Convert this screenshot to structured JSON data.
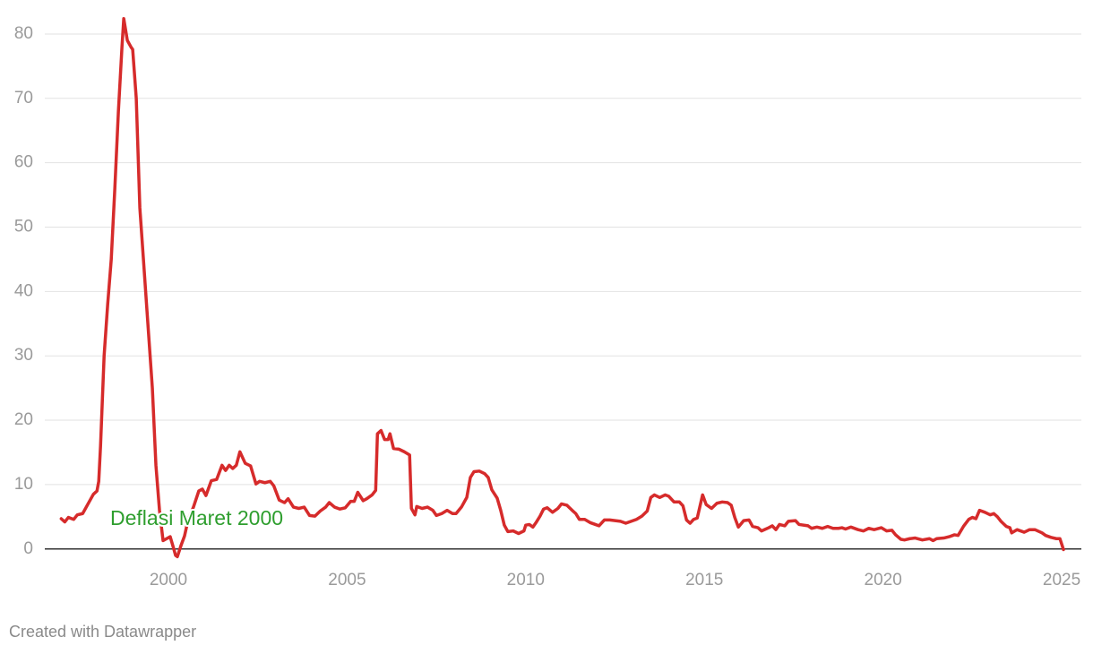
{
  "chart_data": {
    "type": "line",
    "annotation": "Deflasi Maret 2000",
    "credit": "Created with Datawrapper",
    "x": [
      1997.0,
      1997.1,
      1997.2,
      1997.35,
      1997.45,
      1997.6,
      1997.75,
      1997.9,
      1998.0,
      1998.05,
      1998.1,
      1998.2,
      1998.3,
      1998.4,
      1998.5,
      1998.6,
      1998.7,
      1998.75,
      1998.85,
      1998.95,
      1999.0,
      1999.1,
      1999.2,
      1999.3,
      1999.4,
      1999.55,
      1999.65,
      1999.75,
      1999.85,
      1999.95,
      2000.05,
      2000.15,
      2000.2,
      2000.25,
      2000.35,
      2000.45,
      2000.55,
      2000.7,
      2000.85,
      2000.95,
      2001.05,
      2001.2,
      2001.35,
      2001.5,
      2001.6,
      2001.7,
      2001.8,
      2001.9,
      2002.0,
      2002.15,
      2002.3,
      2002.45,
      2002.55,
      2002.7,
      2002.85,
      2002.95,
      2003.1,
      2003.25,
      2003.35,
      2003.5,
      2003.65,
      2003.8,
      2003.95,
      2004.1,
      2004.25,
      2004.4,
      2004.5,
      2004.65,
      2004.8,
      2004.95,
      2005.1,
      2005.2,
      2005.3,
      2005.45,
      2005.55,
      2005.7,
      2005.8,
      2005.85,
      2005.95,
      2006.05,
      2006.15,
      2006.2,
      2006.3,
      2006.45,
      2006.6,
      2006.75,
      2006.8,
      2006.9,
      2006.95,
      2007.1,
      2007.25,
      2007.4,
      2007.5,
      2007.65,
      2007.8,
      2007.95,
      2008.05,
      2008.2,
      2008.35,
      2008.45,
      2008.55,
      2008.7,
      2008.85,
      2008.95,
      2009.05,
      2009.2,
      2009.3,
      2009.4,
      2009.5,
      2009.65,
      2009.8,
      2009.95,
      2010.0,
      2010.1,
      2010.2,
      2010.3,
      2010.4,
      2010.5,
      2010.6,
      2010.75,
      2010.9,
      2011.0,
      2011.15,
      2011.3,
      2011.4,
      2011.5,
      2011.65,
      2011.8,
      2011.95,
      2012.05,
      2012.2,
      2012.35,
      2012.5,
      2012.65,
      2012.8,
      2012.95,
      2013.1,
      2013.25,
      2013.4,
      2013.5,
      2013.6,
      2013.75,
      2013.9,
      2014.0,
      2014.15,
      2014.3,
      2014.4,
      2014.5,
      2014.6,
      2014.7,
      2014.8,
      2014.95,
      2015.05,
      2015.2,
      2015.35,
      2015.5,
      2015.65,
      2015.75,
      2015.85,
      2015.95,
      2016.1,
      2016.25,
      2016.35,
      2016.5,
      2016.6,
      2016.8,
      2016.9,
      2017.0,
      2017.1,
      2017.25,
      2017.35,
      2017.55,
      2017.65,
      2017.9,
      2018.0,
      2018.15,
      2018.3,
      2018.45,
      2018.6,
      2018.75,
      2018.85,
      2018.95,
      2019.1,
      2019.3,
      2019.45,
      2019.6,
      2019.75,
      2019.95,
      2020.1,
      2020.25,
      2020.35,
      2020.5,
      2020.6,
      2020.75,
      2020.9,
      2021.1,
      2021.3,
      2021.4,
      2021.5,
      2021.7,
      2021.85,
      2022.0,
      2022.1,
      2022.25,
      2022.4,
      2022.5,
      2022.6,
      2022.7,
      2022.85,
      2023.0,
      2023.1,
      2023.2,
      2023.3,
      2023.45,
      2023.55,
      2023.6,
      2023.75,
      2023.95,
      2024.1,
      2024.25,
      2024.45,
      2024.55,
      2024.7,
      2024.85,
      2024.95,
      2025.05
    ],
    "series": [
      {
        "color": "#d62b2b",
        "values": [
          4.7,
          4.2,
          4.9,
          4.6,
          5.3,
          5.5,
          7.0,
          8.5,
          9.0,
          10.5,
          16,
          30,
          38,
          45,
          56,
          68,
          78,
          82.4,
          79,
          78,
          77.6,
          70,
          53,
          45,
          37,
          25,
          13,
          6,
          1.3,
          1.6,
          1.9,
          0,
          -1,
          -1.2,
          0.5,
          2,
          4.5,
          6.5,
          9,
          9.3,
          8.3,
          10.6,
          10.8,
          13,
          12.2,
          13,
          12.5,
          13,
          15.1,
          13.3,
          12.9,
          10.1,
          10.5,
          10.3,
          10.5,
          9.8,
          7.6,
          7.2,
          7.8,
          6.5,
          6.3,
          6.5,
          5.2,
          5.1,
          5.9,
          6.5,
          7.2,
          6.5,
          6.2,
          6.4,
          7.4,
          7.4,
          8.8,
          7.5,
          7.8,
          8.4,
          9.1,
          17.9,
          18.4,
          17,
          17,
          17.9,
          15.6,
          15.5,
          15.1,
          14.6,
          6.3,
          5.3,
          6.6,
          6.3,
          6.5,
          6,
          5.2,
          5.5,
          6,
          5.5,
          5.5,
          6.5,
          8,
          11.1,
          12,
          12.1,
          11.7,
          11.1,
          9.2,
          7.9,
          6,
          3.7,
          2.7,
          2.8,
          2.4,
          2.8,
          3.7,
          3.8,
          3.4,
          4.2,
          5.1,
          6.2,
          6.4,
          5.7,
          6.3,
          7,
          6.8,
          6,
          5.5,
          4.6,
          4.6,
          4.1,
          3.8,
          3.6,
          4.5,
          4.5,
          4.4,
          4.3,
          4,
          4.3,
          4.6,
          5.1,
          5.9,
          8,
          8.4,
          8,
          8.4,
          8.2,
          7.3,
          7.3,
          6.7,
          4.5,
          4,
          4.6,
          4.8,
          8.4,
          6.9,
          6.3,
          7.1,
          7.3,
          7.2,
          6.8,
          4.9,
          3.4,
          4.4,
          4.5,
          3.5,
          3.3,
          2.8,
          3.3,
          3.6,
          3,
          3.8,
          3.6,
          4.3,
          4.4,
          3.8,
          3.6,
          3.2,
          3.4,
          3.2,
          3.5,
          3.2,
          3.2,
          3.3,
          3.1,
          3.4,
          3,
          2.8,
          3.2,
          3,
          3.3,
          2.8,
          2.9,
          2.2,
          1.5,
          1.4,
          1.6,
          1.7,
          1.4,
          1.6,
          1.3,
          1.6,
          1.7,
          1.9,
          2.2,
          2.1,
          3.5,
          4.6,
          4.9,
          4.7,
          6,
          5.7,
          5.3,
          5.5,
          5,
          4.3,
          3.5,
          3.3,
          2.5,
          3,
          2.6,
          3,
          3,
          2.5,
          2.1,
          1.8,
          1.6,
          1.6,
          -0.1
        ]
      }
    ],
    "xlim": [
      1996.54,
      2025.55
    ],
    "xticks": [
      2000,
      2005,
      2010,
      2015,
      2020,
      2025
    ],
    "ylim": [
      -2.4,
      82.5
    ],
    "yticks": [
      0,
      10,
      20,
      30,
      40,
      50,
      60,
      70,
      80
    ],
    "grid": true
  }
}
